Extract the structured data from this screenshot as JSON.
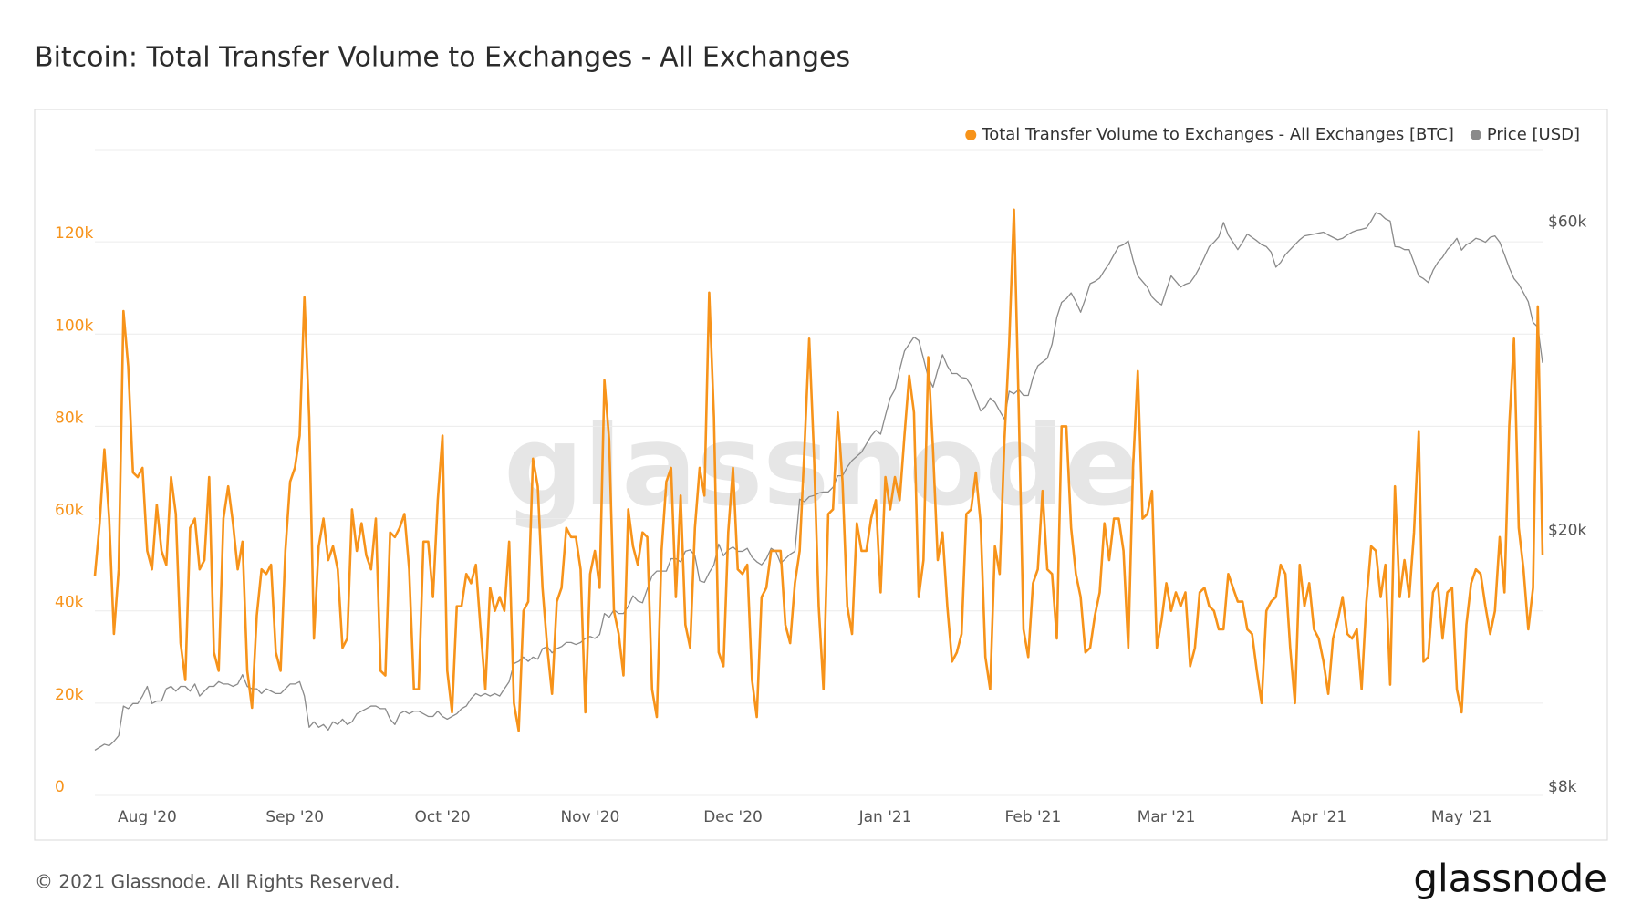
{
  "chart_data": {
    "type": "line",
    "title": "Bitcoin: Total Transfer Volume to Exchanges - All Exchanges",
    "footer": "© 2021 Glassnode. All Rights Reserved.",
    "logo": "glassnode",
    "watermark": "glassnode",
    "legend": "top-right",
    "grid": true,
    "xlim": [
      0,
      304
    ],
    "xticks": [
      {
        "value": 11,
        "label": "Aug '20"
      },
      {
        "value": 42,
        "label": "Sep '20"
      },
      {
        "value": 73,
        "label": "Oct '20"
      },
      {
        "value": 104,
        "label": "Nov '20"
      },
      {
        "value": 134,
        "label": "Dec '20"
      },
      {
        "value": 166,
        "label": "Jan '21"
      },
      {
        "value": 197,
        "label": "Feb '21"
      },
      {
        "value": 225,
        "label": "Mar '21"
      },
      {
        "value": 257,
        "label": "Apr '21"
      },
      {
        "value": 287,
        "label": "May '21"
      }
    ],
    "ylim": [
      0,
      140000
    ],
    "yticks": [
      0,
      {
        "value": 20000,
        "label": "20k"
      },
      {
        "value": 40000,
        "label": "40k"
      },
      {
        "value": 60000,
        "label": "60k"
      },
      {
        "value": 80000,
        "label": "80k"
      },
      {
        "value": 100000,
        "label": "100k"
      },
      {
        "value": 120000,
        "label": "120k"
      }
    ],
    "y2lim": [
      8000,
      80000
    ],
    "y2scale": "log",
    "y2ticks": [
      {
        "value": 8000,
        "label": "$8k"
      },
      {
        "value": 20000,
        "label": "$20k"
      },
      {
        "value": 60000,
        "label": "$60k"
      }
    ],
    "series": [
      {
        "name": "Total Transfer Volume to Exchanges - All Exchanges [BTC]",
        "color": "#f7931a",
        "axis": "y",
        "values": [
          47600,
          59000,
          75000,
          60000,
          35000,
          49000,
          105000,
          93000,
          70000,
          69000,
          71000,
          53000,
          49000,
          63000,
          53000,
          50000,
          69000,
          61000,
          33000,
          25000,
          58000,
          60000,
          49000,
          51000,
          69000,
          31000,
          27000,
          60000,
          67000,
          59000,
          49000,
          55000,
          27000,
          19000,
          39000,
          49000,
          48000,
          50000,
          31000,
          27000,
          53000,
          68000,
          71000,
          78000,
          108000,
          82000,
          34000,
          54000,
          60000,
          51000,
          54000,
          49000,
          32000,
          34000,
          62000,
          53000,
          59000,
          52000,
          49000,
          60000,
          27000,
          26000,
          57000,
          56000,
          58000,
          61000,
          49000,
          23000,
          23000,
          55000,
          55000,
          43000,
          64000,
          78000,
          27000,
          18000,
          41000,
          41000,
          48000,
          46000,
          50000,
          36000,
          23000,
          45000,
          40000,
          43000,
          40000,
          55000,
          20000,
          14000,
          40000,
          42000,
          73000,
          67000,
          45000,
          32000,
          22000,
          42000,
          45000,
          58000,
          56000,
          56000,
          49000,
          18000,
          48000,
          53000,
          45000,
          90000,
          77000,
          40000,
          35000,
          26000,
          62000,
          54000,
          50000,
          57000,
          56000,
          23000,
          17000,
          53000,
          68000,
          71000,
          43000,
          65000,
          37000,
          32000,
          58000,
          71000,
          65000,
          109000,
          82000,
          31000,
          28000,
          57000,
          71000,
          49000,
          48000,
          50000,
          25000,
          17000,
          43000,
          45000,
          53000,
          53000,
          53000,
          37000,
          33000,
          46000,
          53000,
          75000,
          99000,
          74000,
          41000,
          23000,
          61000,
          62000,
          83000,
          68000,
          41000,
          35000,
          59000,
          53000,
          53000,
          60000,
          64000,
          44000,
          69000,
          62000,
          69000,
          64000,
          78000,
          91000,
          83000,
          43000,
          51000,
          95000,
          75000,
          51000,
          57000,
          41000,
          29000,
          31000,
          35000,
          61000,
          62000,
          70000,
          59000,
          30000,
          23000,
          54000,
          48000,
          77000,
          98000,
          127000,
          84000,
          36000,
          30000,
          46000,
          49000,
          66000,
          49000,
          48000,
          34000,
          80000,
          80000,
          58000,
          48000,
          43000,
          31000,
          32000,
          39000,
          44000,
          59000,
          51000,
          60000,
          60000,
          53000,
          32000,
          71000,
          92000,
          60000,
          61000,
          66000,
          32000,
          38000,
          46000,
          40000,
          44000,
          41000,
          44000,
          28000,
          32000,
          44000,
          45000,
          41000,
          40000,
          36000,
          36000,
          48000,
          45000,
          42000,
          42000,
          36000,
          35000,
          27000,
          20000,
          40000,
          42000,
          43000,
          50000,
          48000,
          32000,
          20000,
          50000,
          41000,
          46000,
          36000,
          34000,
          29000,
          22000,
          34000,
          38000,
          43000,
          35000,
          34000,
          36000,
          23000,
          42000,
          54000,
          53000,
          43000,
          50000,
          24000,
          67000,
          43000,
          51000,
          43000,
          57000,
          79000,
          29000,
          30000,
          44000,
          46000,
          34000,
          44000,
          45000,
          23000,
          18000,
          37000,
          46000,
          49000,
          48000,
          41000,
          35000,
          40000,
          56000,
          44000,
          80000,
          99000,
          58000,
          49000,
          36000,
          45000,
          106000,
          52000
        ]
      },
      {
        "name": "Price [USD]",
        "color": "#8a8a8a",
        "axis": "y2",
        "values": [
          9400,
          9500,
          9600,
          9550,
          9700,
          9900,
          11000,
          10900,
          11100,
          11100,
          11400,
          11800,
          11100,
          11200,
          11200,
          11700,
          11800,
          11600,
          11800,
          11800,
          11600,
          11900,
          11400,
          11600,
          11800,
          11800,
          12000,
          11900,
          11900,
          11800,
          11900,
          12300,
          11800,
          11700,
          11700,
          11500,
          11700,
          11600,
          11500,
          11500,
          11700,
          11900,
          11900,
          12000,
          11400,
          10200,
          10400,
          10200,
          10300,
          10100,
          10400,
          10300,
          10500,
          10300,
          10400,
          10700,
          10800,
          10900,
          11000,
          11000,
          10900,
          10900,
          10500,
          10300,
          10700,
          10800,
          10700,
          10800,
          10800,
          10700,
          10600,
          10600,
          10800,
          10600,
          10500,
          10600,
          10700,
          10900,
          11000,
          11300,
          11500,
          11400,
          11500,
          11400,
          11500,
          11400,
          11700,
          12000,
          12800,
          12900,
          13100,
          12900,
          13100,
          13000,
          13500,
          13600,
          13300,
          13500,
          13600,
          13800,
          13800,
          13700,
          13800,
          14000,
          14100,
          14000,
          14200,
          15300,
          15100,
          15500,
          15300,
          15300,
          15700,
          16300,
          16000,
          15900,
          16700,
          17500,
          17800,
          17800,
          17800,
          18600,
          18600,
          18400,
          19100,
          19200,
          18800,
          17200,
          17100,
          17700,
          18200,
          19600,
          18800,
          19200,
          19400,
          19100,
          19100,
          19300,
          18700,
          18400,
          18200,
          18600,
          19300,
          19100,
          18300,
          18600,
          18900,
          19100,
          23000,
          22800,
          23200,
          23300,
          23500,
          23600,
          23600,
          24000,
          25000,
          25000,
          25800,
          26400,
          26800,
          27200,
          28000,
          28800,
          29400,
          29000,
          31000,
          33000,
          34000,
          36500,
          39000,
          40000,
          41000,
          40500,
          38000,
          35500,
          34300,
          36500,
          38500,
          37000,
          36000,
          36000,
          35500,
          35400,
          34500,
          33000,
          31500,
          32000,
          33000,
          32500,
          31500,
          30600,
          33800,
          33500,
          34000,
          33300,
          33300,
          35500,
          37000,
          37500,
          38000,
          40000,
          44000,
          46400,
          47000,
          48000,
          46500,
          44800,
          47000,
          49600,
          50000,
          50600,
          52000,
          53300,
          55000,
          56600,
          57000,
          57800,
          54000,
          51000,
          50000,
          49000,
          47300,
          46500,
          46000,
          48500,
          51000,
          50000,
          49000,
          49500,
          49800,
          51000,
          52600,
          54500,
          56600,
          57500,
          58600,
          61700,
          59000,
          57500,
          56000,
          57500,
          59200,
          58500,
          57800,
          57000,
          56600,
          55500,
          52600,
          53500,
          55000,
          56000,
          57000,
          58000,
          58800,
          59000,
          59200,
          59400,
          59600,
          59000,
          58500,
          58000,
          58300,
          59000,
          59600,
          60000,
          60200,
          60500,
          62000,
          63900,
          63500,
          62500,
          62000,
          56600,
          56500,
          56000,
          56000,
          53500,
          51000,
          50500,
          49800,
          52000,
          53500,
          54500,
          56000,
          57000,
          58300,
          55900,
          57000,
          57500,
          58300,
          58000,
          57500,
          58500,
          58800,
          57500,
          55000,
          52500,
          50500,
          49500,
          48000,
          46500,
          43200,
          42500,
          37400
        ]
      }
    ]
  }
}
